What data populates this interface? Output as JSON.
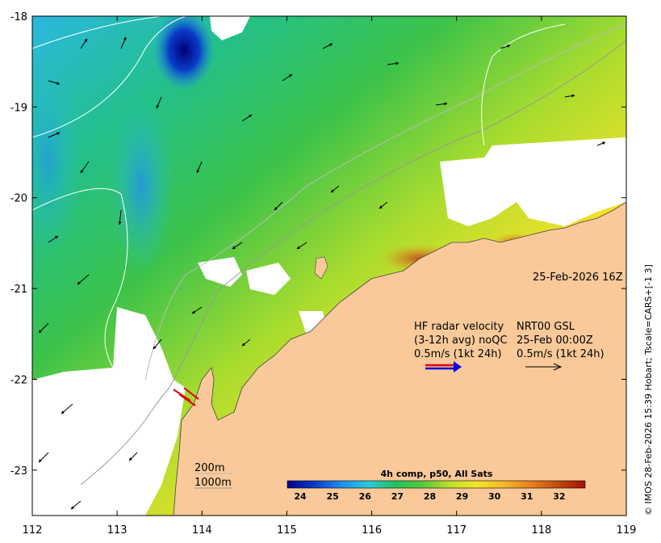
{
  "map": {
    "timestamp": "25-Feb-2026 16Z",
    "credit": "© IMOS 28-Feb-2026 15:39 Hobart; Tscale=CARS+[-1 3]",
    "lon_range": [
      112,
      119
    ],
    "lat_range": [
      -23.5,
      -18
    ],
    "lon_ticks": [
      "112",
      "113",
      "114",
      "115",
      "116",
      "117",
      "118",
      "119"
    ],
    "lat_ticks": [
      "-18",
      "-19",
      "-20",
      "-21",
      "-22",
      "-23"
    ],
    "land_color": "#f9c99a",
    "no_data_color": "#ffffff"
  },
  "legend": {
    "radar_line1": "HF radar velocity",
    "radar_line2": "(3-12h avg) noQC",
    "radar_line3": "0.5m/s (1kt 24h)",
    "model_line1": "NRT00 GSL",
    "model_line2": "25-Feb 00:00Z",
    "model_line3": "0.5m/s (1kt 24h)",
    "radar_arrow_colors": [
      "#e00000",
      "#0000e0"
    ],
    "model_arrow_color": "#000000"
  },
  "isobaths": {
    "label_200": "200m",
    "label_1000": "1000m"
  },
  "colorbar": {
    "title": "4h comp, p50, All Sats",
    "min": 23.6,
    "max": 32.8,
    "ticks": [
      "24",
      "25",
      "26",
      "27",
      "28",
      "29",
      "30",
      "31",
      "32"
    ],
    "tick_values": [
      24,
      25,
      26,
      27,
      28,
      29,
      30,
      31,
      32
    ],
    "stops": [
      "#00008b",
      "#0a3cc8",
      "#1f8ff0",
      "#2cc8d8",
      "#22c25a",
      "#55c83a",
      "#bfe02c",
      "#f5e62a",
      "#f5b62a",
      "#e6801f",
      "#c24a12",
      "#a01000"
    ]
  }
}
